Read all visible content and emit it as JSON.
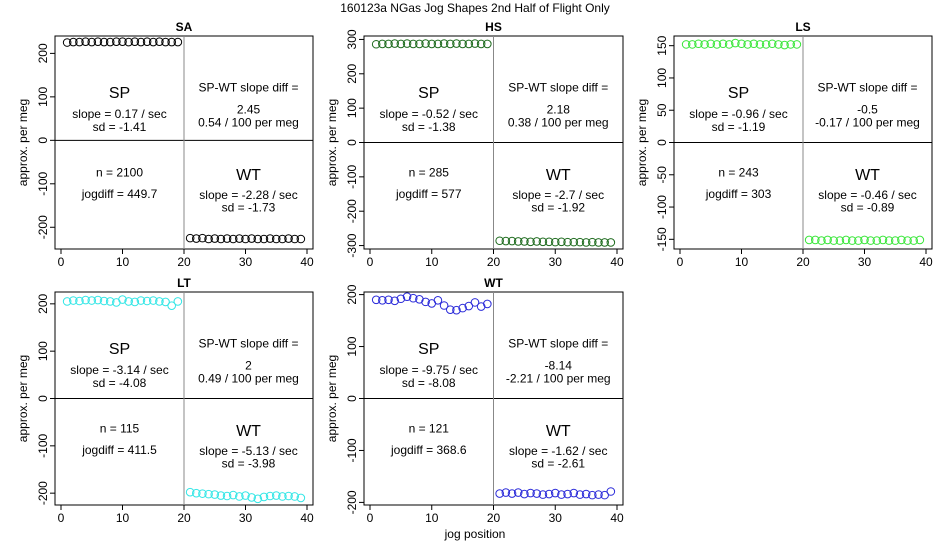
{
  "figure": {
    "title": "160123a   NGas Jog Shapes 2nd Half of Flight Only",
    "xlabel": "jog position",
    "ylabel": "approx. per meg"
  },
  "chart_data": [
    {
      "type": "scatter",
      "title": "SA",
      "ylabel": "approx. per meg",
      "xlim": [
        0,
        40
      ],
      "ylim": [
        -250,
        240
      ],
      "xticks": [
        0,
        10,
        20,
        30,
        40
      ],
      "yticks": [
        -200,
        -100,
        0,
        100,
        200
      ],
      "marker_color": "#000000",
      "x": [
        1,
        2,
        3,
        4,
        5,
        6,
        7,
        8,
        9,
        10,
        11,
        12,
        13,
        14,
        15,
        16,
        17,
        18,
        19,
        21,
        22,
        23,
        24,
        25,
        26,
        27,
        28,
        29,
        30,
        31,
        32,
        33,
        34,
        35,
        36,
        37,
        38,
        39
      ],
      "y": [
        225,
        226,
        226,
        227,
        226,
        227,
        226,
        226,
        227,
        227,
        226,
        227,
        226,
        227,
        226,
        227,
        226,
        226,
        226,
        -225,
        -226,
        -225,
        -227,
        -226,
        -227,
        -226,
        -227,
        -226,
        -227,
        -226,
        -227,
        -227,
        -226,
        -227,
        -227,
        -226,
        -227,
        -227
      ],
      "annotations": {
        "sp_label": "SP",
        "sp_slope": "slope = 0.17 / sec",
        "sp_sd": "sd = -1.41",
        "diff_title": "SP-WT slope diff =",
        "diff_value": "2.45",
        "diff_meg": "0.54 / 100 per meg",
        "n": "n = 2100",
        "jogdiff": "jogdiff = 449.7",
        "wt_label": "WT",
        "wt_slope": "slope = -2.28 / sec",
        "wt_sd": "sd = -1.73"
      }
    },
    {
      "type": "scatter",
      "title": "HS",
      "ylabel": "approx. per meg",
      "xlim": [
        0,
        40
      ],
      "ylim": [
        -310,
        310
      ],
      "xticks": [
        0,
        10,
        20,
        30,
        40
      ],
      "yticks": [
        -300,
        -200,
        -100,
        0,
        100,
        200,
        300
      ],
      "marker_color": "#1e6b1e",
      "x": [
        1,
        2,
        3,
        4,
        5,
        6,
        7,
        8,
        9,
        10,
        11,
        12,
        13,
        14,
        15,
        16,
        17,
        18,
        19,
        21,
        22,
        23,
        24,
        25,
        26,
        27,
        28,
        29,
        30,
        31,
        32,
        33,
        34,
        35,
        36,
        37,
        38,
        39
      ],
      "y": [
        286,
        287,
        287,
        288,
        287,
        288,
        287,
        287,
        288,
        287,
        287,
        288,
        287,
        288,
        287,
        287,
        288,
        287,
        287,
        -286,
        -287,
        -287,
        -288,
        -288,
        -289,
        -288,
        -289,
        -289,
        -290,
        -289,
        -290,
        -290,
        -290,
        -291,
        -290,
        -291,
        -291,
        -291
      ],
      "annotations": {
        "sp_label": "SP",
        "sp_slope": "slope = -0.52 / sec",
        "sp_sd": "sd = -1.38",
        "diff_title": "SP-WT slope diff =",
        "diff_value": "2.18",
        "diff_meg": "0.38 / 100 per meg",
        "n": "n = 285",
        "jogdiff": "jogdiff = 577",
        "wt_label": "WT",
        "wt_slope": "slope = -2.7 / sec",
        "wt_sd": "sd = -1.92"
      }
    },
    {
      "type": "scatter",
      "title": "LS",
      "ylabel": "approx. per meg",
      "xlim": [
        0,
        40
      ],
      "ylim": [
        -165,
        165
      ],
      "xticks": [
        0,
        10,
        20,
        30,
        40
      ],
      "yticks": [
        -150,
        -100,
        -50,
        0,
        50,
        100,
        150
      ],
      "marker_color": "#39e639",
      "x": [
        1,
        2,
        3,
        4,
        5,
        6,
        7,
        8,
        9,
        10,
        11,
        12,
        13,
        14,
        15,
        16,
        17,
        18,
        19,
        21,
        22,
        23,
        24,
        25,
        26,
        27,
        28,
        29,
        30,
        31,
        32,
        33,
        34,
        35,
        36,
        37,
        38,
        39
      ],
      "y": [
        152,
        152,
        153,
        152,
        153,
        152,
        153,
        152,
        154,
        153,
        152,
        153,
        152,
        152,
        153,
        152,
        151,
        152,
        152,
        -151,
        -151,
        -152,
        -151,
        -152,
        -152,
        -151,
        -152,
        -152,
        -151,
        -152,
        -152,
        -151,
        -152,
        -152,
        -151,
        -152,
        -152,
        -151
      ],
      "annotations": {
        "sp_label": "SP",
        "sp_slope": "slope = -0.96 / sec",
        "sp_sd": "sd = -1.19",
        "diff_title": "SP-WT slope diff =",
        "diff_value": "-0.5",
        "diff_meg": "-0.17 / 100 per meg",
        "n": "n = 243",
        "jogdiff": "jogdiff = 303",
        "wt_label": "WT",
        "wt_slope": "slope = -0.46 / sec",
        "wt_sd": "sd = -0.89"
      }
    },
    {
      "type": "scatter",
      "title": "LT",
      "ylabel": "approx. per meg",
      "xlim": [
        0,
        40
      ],
      "ylim": [
        -225,
        225
      ],
      "xticks": [
        0,
        10,
        20,
        30,
        40
      ],
      "yticks": [
        -200,
        -100,
        0,
        100,
        200
      ],
      "marker_color": "#33e6e6",
      "x": [
        1,
        2,
        3,
        4,
        5,
        6,
        7,
        8,
        9,
        10,
        11,
        12,
        13,
        14,
        15,
        16,
        17,
        18,
        19,
        21,
        22,
        23,
        24,
        25,
        26,
        27,
        28,
        29,
        30,
        31,
        32,
        33,
        34,
        35,
        36,
        37,
        38,
        39
      ],
      "y": [
        205,
        207,
        206,
        208,
        207,
        208,
        206,
        205,
        203,
        209,
        205,
        204,
        207,
        206,
        207,
        205,
        204,
        196,
        205,
        -198,
        -200,
        -201,
        -202,
        -203,
        -205,
        -206,
        -204,
        -207,
        -205,
        -209,
        -212,
        -208,
        -206,
        -205,
        -207,
        -206,
        -207,
        -210
      ],
      "annotations": {
        "sp_label": "SP",
        "sp_slope": "slope = -3.14 / sec",
        "sp_sd": "sd = -4.08",
        "diff_title": "SP-WT slope diff =",
        "diff_value": "2",
        "diff_meg": "0.49 / 100 per meg",
        "n": "n = 115",
        "jogdiff": "jogdiff = 411.5",
        "wt_label": "WT",
        "wt_slope": "slope = -5.13 / sec",
        "wt_sd": "sd = -3.98"
      }
    },
    {
      "type": "scatter",
      "title": "WT",
      "ylabel": "approx. per meg",
      "xlim": [
        0,
        40
      ],
      "ylim": [
        -205,
        205
      ],
      "xticks": [
        0,
        10,
        20,
        30,
        40
      ],
      "yticks": [
        -200,
        -100,
        0,
        100,
        200
      ],
      "marker_color": "#2a2ad9",
      "x": [
        1,
        2,
        3,
        4,
        5,
        6,
        7,
        8,
        9,
        10,
        11,
        12,
        13,
        14,
        15,
        16,
        17,
        18,
        19,
        21,
        22,
        23,
        24,
        25,
        26,
        27,
        28,
        29,
        30,
        31,
        32,
        33,
        34,
        35,
        36,
        37,
        38,
        39
      ],
      "y": [
        190,
        189,
        190,
        188,
        192,
        196,
        193,
        191,
        186,
        183,
        189,
        179,
        171,
        170,
        174,
        178,
        185,
        177,
        182,
        -183,
        -181,
        -183,
        -181,
        -184,
        -182,
        -183,
        -185,
        -184,
        -182,
        -185,
        -184,
        -182,
        -185,
        -184,
        -186,
        -185,
        -186,
        -179
      ],
      "annotations": {
        "sp_label": "SP",
        "sp_slope": "slope = -9.75 / sec",
        "sp_sd": "sd = -8.08",
        "diff_title": "SP-WT slope diff =",
        "diff_value": "-8.14",
        "diff_meg": "-2.21 / 100 per meg",
        "n": "n = 121",
        "jogdiff": "jogdiff = 368.6",
        "wt_label": "WT",
        "wt_slope": "slope = -1.62 / sec",
        "wt_sd": "sd = -2.61"
      }
    }
  ]
}
